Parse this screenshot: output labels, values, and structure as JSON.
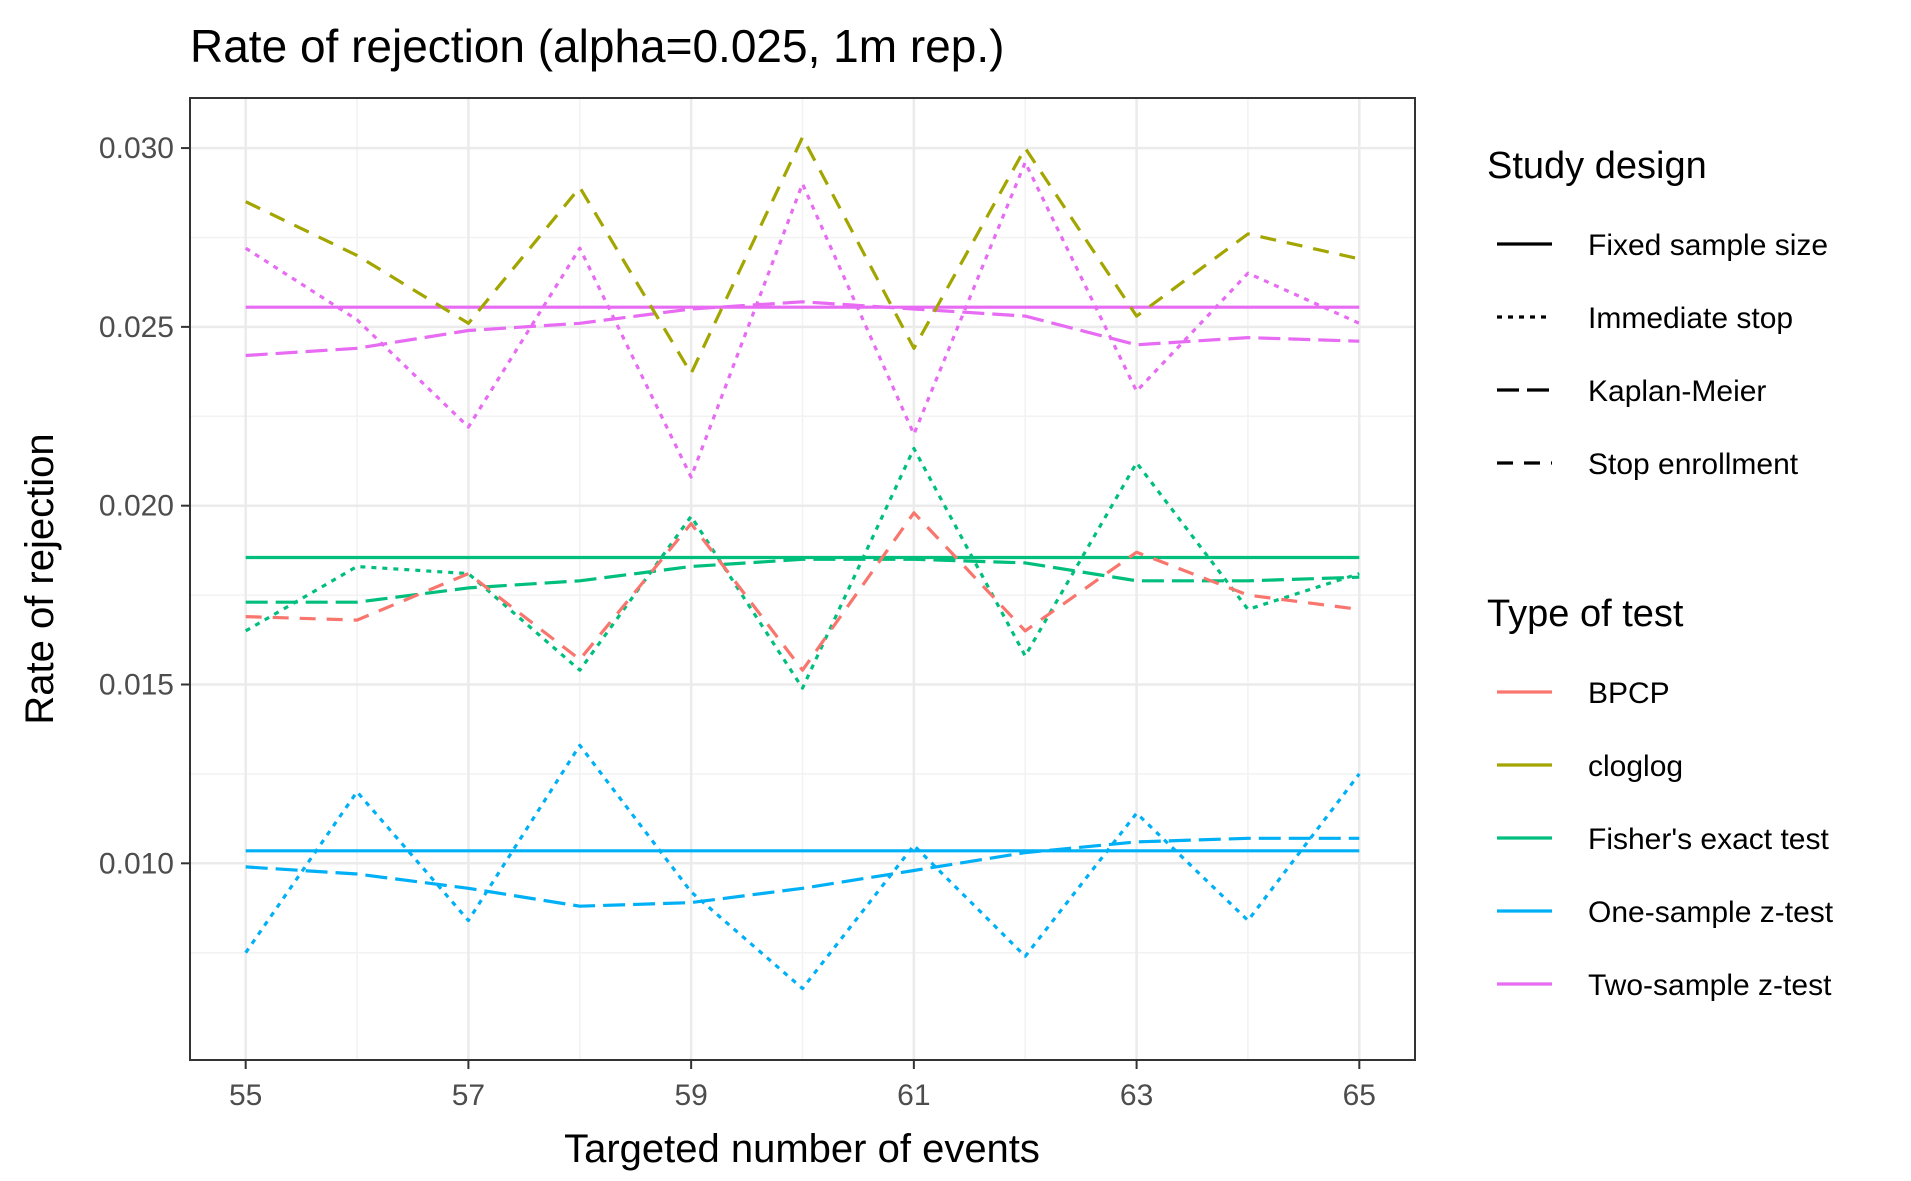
{
  "chart_data": {
    "type": "line",
    "title": "Rate of rejection (alpha=0.025, 1m rep.)",
    "xlabel": "Targeted number of events",
    "ylabel": "Rate of rejection",
    "xlim": [
      54.5,
      65.5
    ],
    "ylim": [
      0.0045,
      0.0314
    ],
    "x_ticks": [
      55,
      57,
      59,
      61,
      63,
      65
    ],
    "y_ticks": [
      0.01,
      0.015,
      0.02,
      0.025,
      0.03
    ],
    "x_tick_labels": [
      "55",
      "57",
      "59",
      "61",
      "63",
      "65"
    ],
    "y_tick_labels": [
      "0.010",
      "0.015",
      "0.020",
      "0.025",
      "0.030"
    ],
    "grid": true,
    "legend_placement": "right",
    "x": [
      55,
      56,
      57,
      58,
      59,
      60,
      61,
      62,
      63,
      64,
      65
    ],
    "tests": [
      {
        "name": "BPCP",
        "color": "#F8766D"
      },
      {
        "name": "cloglog",
        "color": "#A3A500"
      },
      {
        "name": "Fisher's exact test",
        "color": "#00BF7D"
      },
      {
        "name": "One-sample z-test",
        "color": "#00B0F6"
      },
      {
        "name": "Two-sample z-test",
        "color": "#E76BF3"
      }
    ],
    "designs": [
      {
        "name": "Fixed sample size",
        "linetype": "solid"
      },
      {
        "name": "Immediate stop",
        "linetype": "dotted"
      },
      {
        "name": "Kaplan-Meier",
        "linetype": "longdash"
      },
      {
        "name": "Stop enrollment",
        "linetype": "dashed"
      }
    ],
    "series": [
      {
        "test": "Two-sample z-test",
        "design": "Fixed sample size",
        "values": [
          0.02555,
          0.02555,
          0.02555,
          0.02555,
          0.02555,
          0.02555,
          0.02555,
          0.02555,
          0.02555,
          0.02555,
          0.02555
        ]
      },
      {
        "test": "Fisher's exact test",
        "design": "Fixed sample size",
        "values": [
          0.01855,
          0.01855,
          0.01855,
          0.01855,
          0.01855,
          0.01855,
          0.01855,
          0.01855,
          0.01855,
          0.01855,
          0.01855
        ]
      },
      {
        "test": "One-sample z-test",
        "design": "Fixed sample size",
        "values": [
          0.01035,
          0.01035,
          0.01035,
          0.01035,
          0.01035,
          0.01035,
          0.01035,
          0.01035,
          0.01035,
          0.01035,
          0.01035
        ]
      },
      {
        "test": "Two-sample z-test",
        "design": "Immediate stop",
        "values": [
          0.0272,
          0.0252,
          0.0222,
          0.0272,
          0.0208,
          0.029,
          0.022,
          0.0296,
          0.0232,
          0.0265,
          0.0251
        ]
      },
      {
        "test": "Fisher's exact test",
        "design": "Immediate stop",
        "values": [
          0.0165,
          0.0183,
          0.0181,
          0.0154,
          0.0197,
          0.0149,
          0.0216,
          0.0158,
          0.0212,
          0.0171,
          0.0181
        ]
      },
      {
        "test": "One-sample z-test",
        "design": "Immediate stop",
        "values": [
          0.0075,
          0.012,
          0.0084,
          0.0133,
          0.0092,
          0.0065,
          0.0105,
          0.0074,
          0.0114,
          0.0084,
          0.0125
        ]
      },
      {
        "test": "Two-sample z-test",
        "design": "Kaplan-Meier",
        "values": [
          0.0242,
          0.0244,
          0.0249,
          0.0251,
          0.0255,
          0.0257,
          0.0255,
          0.0253,
          0.0245,
          0.0247,
          0.0246
        ]
      },
      {
        "test": "Fisher's exact test",
        "design": "Kaplan-Meier",
        "values": [
          0.0173,
          0.0173,
          0.0177,
          0.0179,
          0.0183,
          0.0185,
          0.0185,
          0.0184,
          0.0179,
          0.0179,
          0.018
        ]
      },
      {
        "test": "One-sample z-test",
        "design": "Kaplan-Meier",
        "values": [
          0.0099,
          0.0097,
          0.0093,
          0.0088,
          0.0089,
          0.0093,
          0.0098,
          0.0103,
          0.0106,
          0.0107,
          0.0107
        ]
      },
      {
        "test": "cloglog",
        "design": "Stop enrollment",
        "values": [
          0.0285,
          0.027,
          0.0251,
          0.0289,
          0.0237,
          0.0303,
          0.0244,
          0.03,
          0.0253,
          0.0276,
          0.0269
        ]
      },
      {
        "test": "BPCP",
        "design": "Stop enrollment",
        "values": [
          0.0169,
          0.0168,
          0.0181,
          0.0157,
          0.0195,
          0.0154,
          0.0198,
          0.0165,
          0.0187,
          0.0175,
          0.0171
        ]
      }
    ]
  },
  "legend": {
    "design_title": "Study design",
    "test_title": "Type of test"
  }
}
